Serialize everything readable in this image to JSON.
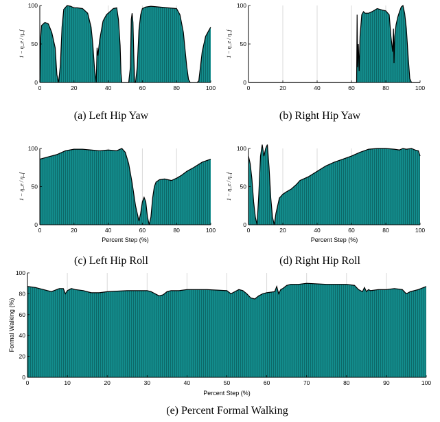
{
  "colors": {
    "fill": "#138c8c",
    "hatch": "#0b5f5f",
    "outline": "#000000",
    "grid": "#d9d9d9"
  },
  "chart_data": [
    {
      "id": "a",
      "type": "area",
      "caption": "(a) Left Hip Yaw",
      "xlabel": "",
      "ylabel": "1 − η_e / η_f",
      "xlim": [
        0,
        100
      ],
      "ylim": [
        0,
        100
      ],
      "xticks": [
        0,
        20,
        40,
        60,
        80,
        100
      ],
      "yticks": [
        0,
        50,
        100
      ],
      "x": [
        0,
        0.5,
        1,
        3,
        5,
        7,
        9,
        10,
        11,
        12,
        13,
        14,
        16,
        18,
        20,
        22,
        25,
        28,
        30,
        31,
        32,
        33,
        33.5,
        34,
        35,
        37,
        39,
        41,
        43,
        45,
        46,
        47,
        47.5,
        48,
        52,
        53,
        53.5,
        54,
        54.5,
        55,
        55.5,
        56,
        57,
        58,
        59,
        60,
        62,
        65,
        70,
        75,
        80,
        82,
        84,
        85,
        86,
        87,
        88,
        92,
        93,
        95,
        97,
        99,
        100
      ],
      "y": [
        0,
        58,
        74,
        78,
        76,
        65,
        45,
        10,
        0,
        22,
        72,
        95,
        100,
        99,
        97,
        97,
        96,
        90,
        72,
        50,
        18,
        0,
        45,
        35,
        55,
        80,
        88,
        92,
        96,
        97,
        82,
        48,
        12,
        0,
        0,
        20,
        82,
        90,
        78,
        35,
        0,
        0,
        20,
        68,
        88,
        96,
        98,
        99,
        98,
        97,
        96,
        88,
        65,
        42,
        20,
        4,
        0,
        0,
        2,
        40,
        60,
        68,
        72
      ]
    },
    {
      "id": "b",
      "type": "area",
      "caption": "(b) Right Hip Yaw",
      "xlabel": "",
      "ylabel": "1 − η_e / η_f",
      "xlim": [
        0,
        100
      ],
      "ylim": [
        0,
        100
      ],
      "xticks": [
        0,
        20,
        40,
        60,
        80,
        100
      ],
      "yticks": [
        0,
        50,
        100
      ],
      "x": [
        0,
        63,
        63.3,
        63.6,
        64,
        64.5,
        65,
        66,
        67,
        68,
        70,
        72,
        75,
        78,
        80,
        82,
        83,
        84,
        84.5,
        84.8,
        85.2,
        86,
        87,
        88,
        89,
        90,
        91,
        92,
        93,
        94,
        95,
        100
      ],
      "y": [
        0,
        0,
        88,
        20,
        50,
        15,
        60,
        88,
        92,
        90,
        90,
        92,
        96,
        94,
        93,
        88,
        60,
        40,
        70,
        25,
        60,
        75,
        85,
        92,
        98,
        100,
        90,
        70,
        35,
        5,
        0,
        0
      ]
    },
    {
      "id": "c",
      "type": "area",
      "caption": "(c) Left Hip Roll",
      "xlabel": "Percent Step (%)",
      "ylabel": "1 − η_e / η_f",
      "xlim": [
        0,
        100
      ],
      "ylim": [
        0,
        100
      ],
      "xticks": [
        0,
        20,
        40,
        60,
        80,
        100
      ],
      "yticks": [
        0,
        50,
        100
      ],
      "x": [
        0,
        5,
        10,
        15,
        20,
        25,
        30,
        35,
        40,
        45,
        47,
        48,
        50,
        52,
        54,
        56,
        58,
        59,
        60,
        61,
        62,
        63,
        64,
        65,
        66,
        67,
        68,
        70,
        73,
        77,
        80,
        83,
        86,
        90,
        95,
        100
      ],
      "y": [
        86,
        89,
        92,
        97,
        99,
        99,
        98,
        97,
        98,
        97,
        99,
        100,
        95,
        80,
        55,
        25,
        5,
        15,
        30,
        36,
        30,
        10,
        0,
        10,
        35,
        50,
        56,
        59,
        60,
        58,
        61,
        65,
        70,
        75,
        82,
        86
      ]
    },
    {
      "id": "d",
      "type": "area",
      "caption": "(d) Right Hip Roll",
      "xlabel": "Percent Step (%)",
      "ylabel": "1 − η_e / η_f",
      "xlim": [
        0,
        100
      ],
      "ylim": [
        0,
        100
      ],
      "xticks": [
        0,
        20,
        40,
        60,
        80,
        100
      ],
      "yticks": [
        0,
        50,
        100
      ],
      "x": [
        0,
        1,
        2,
        3,
        4,
        5,
        6,
        7,
        8,
        9,
        10,
        11,
        12,
        13,
        14,
        15,
        16,
        18,
        20,
        22,
        25,
        28,
        30,
        35,
        40,
        45,
        50,
        55,
        60,
        65,
        70,
        75,
        80,
        85,
        88,
        90,
        92,
        95,
        97,
        99,
        100
      ],
      "y": [
        90,
        80,
        60,
        30,
        10,
        0,
        40,
        90,
        105,
        90,
        100,
        105,
        75,
        35,
        10,
        0,
        15,
        35,
        40,
        43,
        47,
        53,
        58,
        63,
        70,
        77,
        82,
        86,
        90,
        95,
        99,
        100,
        100,
        99,
        98,
        100,
        99,
        100,
        98,
        97,
        90
      ]
    },
    {
      "id": "e",
      "type": "area",
      "caption": "(e) Percent Formal Walking",
      "xlabel": "Percent Step (%)",
      "ylabel": "Formal Walking (%)",
      "xlim": [
        0,
        100
      ],
      "ylim": [
        0,
        100
      ],
      "xticks": [
        0,
        10,
        20,
        30,
        40,
        50,
        60,
        70,
        80,
        90,
        100
      ],
      "yticks": [
        0,
        20,
        40,
        60,
        80,
        100
      ],
      "x": [
        0,
        2,
        4,
        6,
        8,
        9,
        9.5,
        10,
        11,
        12,
        14,
        16,
        18,
        20,
        25,
        30,
        31,
        32,
        33,
        34,
        35,
        36,
        38,
        40,
        45,
        50,
        51,
        52,
        53,
        54,
        55,
        56,
        57,
        58,
        59,
        60,
        62,
        62.5,
        63,
        63.5,
        64,
        65,
        66,
        68,
        70,
        75,
        80,
        82,
        83,
        84,
        84.5,
        85,
        85.5,
        86,
        88,
        90,
        92,
        94,
        95,
        96,
        98,
        100
      ],
      "y": [
        87,
        86,
        84,
        82,
        85,
        85,
        80,
        83,
        85,
        84,
        83,
        81,
        81,
        82,
        83,
        83,
        82,
        80,
        78,
        79,
        82,
        83,
        83,
        84,
        84,
        83,
        80,
        82,
        84,
        83,
        80,
        76,
        75,
        78,
        80,
        81,
        82,
        87,
        80,
        84,
        85,
        88,
        89,
        89,
        90,
        89,
        89,
        88,
        84,
        82,
        86,
        82,
        84,
        83,
        84,
        84,
        85,
        84,
        80,
        82,
        84,
        87
      ]
    }
  ]
}
